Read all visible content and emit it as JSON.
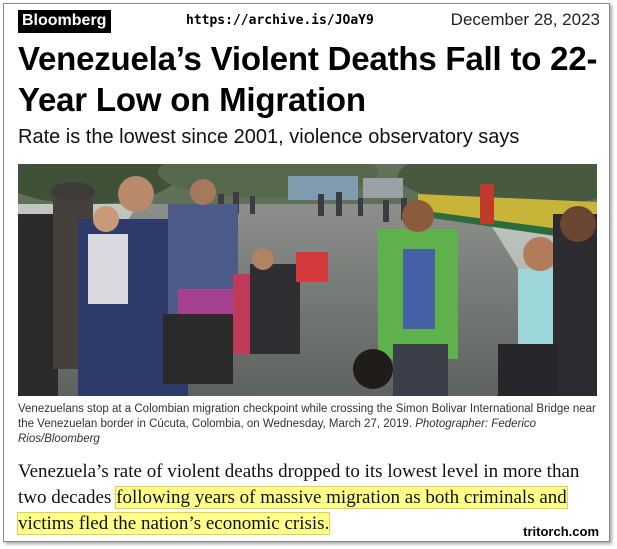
{
  "header": {
    "brand": "Bloomberg",
    "archive_url": "https://archive.is/JOaY9",
    "date": "December 28, 2023"
  },
  "article": {
    "headline": "Venezuela’s Violent Deaths Fall to 22-Year Low on Migration",
    "subheadline": "Rate is the lowest since 2001, violence observatory says",
    "caption": "Venezuelans stop at a Colombian migration checkpoint while crossing the Simon Bolivar International Bridge near the Venezuelan border in Cúcuta, Colombia, on Wednesday, March 27, 2019.",
    "photo_credit": "Photographer: Federico Rios/Bloomberg",
    "body_lead": "Venezuela’s rate of violent deaths dropped to its lowest level in more than two decades",
    "body_highlighted": "following years of massive migration as both criminals and victims fled the nation’s economic crisis."
  },
  "watermark": "tritorch.com",
  "colors": {
    "highlight": "#ffff8a",
    "brand_bg": "#000000",
    "brand_fg": "#ffffff"
  }
}
